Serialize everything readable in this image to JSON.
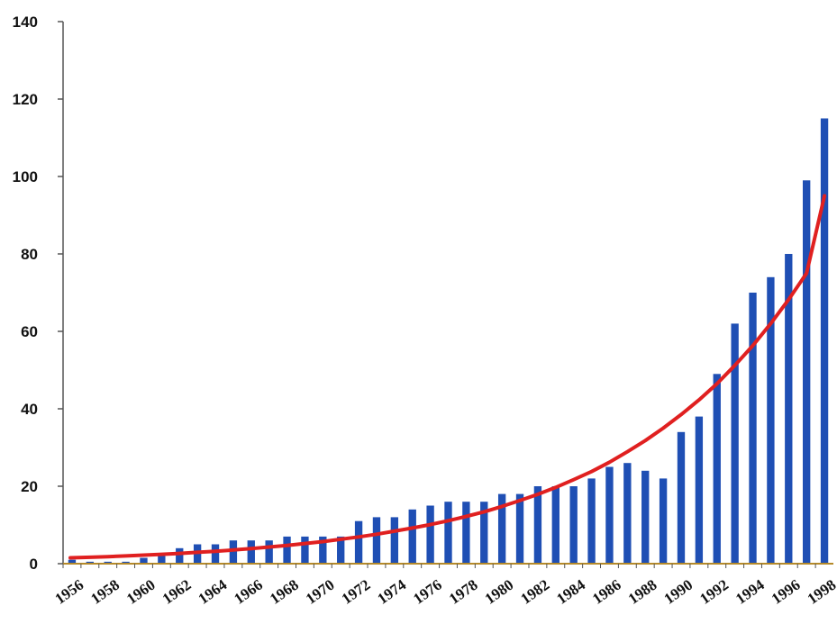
{
  "chart_data": {
    "type": "bar",
    "title": "",
    "xlabel": "",
    "ylabel": "",
    "ylim": [
      0,
      140
    ],
    "y_ticks": [
      0,
      20,
      40,
      60,
      80,
      100,
      120,
      140
    ],
    "categories": [
      "1956",
      "1957",
      "1958",
      "1959",
      "1960",
      "1961",
      "1962",
      "1963",
      "1964",
      "1965",
      "1966",
      "1967",
      "1968",
      "1969",
      "1970",
      "1971",
      "1972",
      "1973",
      "1974",
      "1975",
      "1976",
      "1977",
      "1978",
      "1979",
      "1980",
      "1981",
      "1982",
      "1983",
      "1984",
      "1985",
      "1986",
      "1987",
      "1988",
      "1989",
      "1990",
      "1991",
      "1992",
      "1993",
      "1994",
      "1995",
      "1996",
      "1997",
      "1998"
    ],
    "x_tick_labels": [
      "1956",
      "1958",
      "1960",
      "1962",
      "1964",
      "1966",
      "1968",
      "1970",
      "1972",
      "1974",
      "1976",
      "1978",
      "1980",
      "1982",
      "1984",
      "1986",
      "1988",
      "1990",
      "1992",
      "1994",
      "1996",
      "1998"
    ],
    "values": [
      1,
      0.5,
      0.5,
      0.5,
      1.5,
      2,
      4,
      5,
      5,
      6,
      6,
      6,
      7,
      7,
      7,
      7,
      11,
      12,
      12,
      14,
      15,
      16,
      16,
      16,
      18,
      18,
      20,
      20,
      20,
      22,
      25,
      26,
      24,
      22,
      34,
      38,
      49,
      62,
      70,
      74,
      80,
      99,
      115
    ],
    "trend": {
      "type": "exponential",
      "values": [
        1.5,
        1.65,
        1.82,
        2.0,
        2.2,
        2.42,
        2.66,
        2.93,
        3.22,
        3.54,
        3.9,
        4.3,
        4.7,
        5.2,
        5.7,
        6.3,
        6.9,
        7.6,
        8.4,
        9.2,
        10.1,
        11.1,
        12.2,
        13.4,
        14.8,
        16.3,
        17.9,
        19.7,
        21.7,
        23.8,
        26.2,
        28.9,
        31.8,
        35.0,
        38.5,
        42.3,
        46.5,
        51.2,
        56.3,
        62.0,
        68.2,
        75.0,
        95.0
      ]
    },
    "colors": {
      "bar": "#1f4fb4",
      "trend": "#e02020",
      "axis": "#555555",
      "baseline": "#b58a2a"
    },
    "grid": false,
    "legend": "none"
  }
}
